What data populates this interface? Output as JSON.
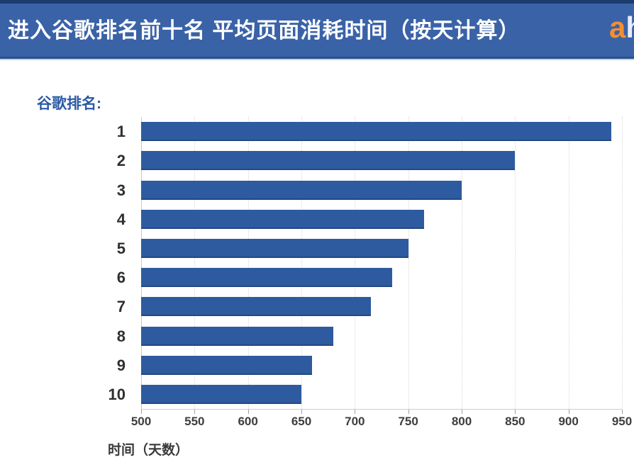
{
  "header": {
    "title": "进入谷歌排名前十名 平均页面消耗时间（按天计算）",
    "background_color": "#3a62a7",
    "logo": {
      "letter_a": "a",
      "letter_h": "h",
      "accent_color": "#f78e2d"
    }
  },
  "chart_data": {
    "type": "bar",
    "orientation": "horizontal",
    "title": "进入谷歌排名前十名 平均页面消耗时间（按天计算）",
    "ylabel": "谷歌排名:",
    "xlabel": "时间（天数）",
    "categories": [
      "1",
      "2",
      "3",
      "4",
      "5",
      "6",
      "7",
      "8",
      "9",
      "10"
    ],
    "values": [
      940,
      850,
      800,
      765,
      750,
      735,
      715,
      680,
      660,
      650
    ],
    "xlim": [
      500,
      950
    ],
    "xticks": [
      500,
      550,
      600,
      650,
      700,
      750,
      800,
      850,
      900,
      950
    ],
    "grid": true,
    "legend": false,
    "bar_color": "#2e5b9f"
  }
}
